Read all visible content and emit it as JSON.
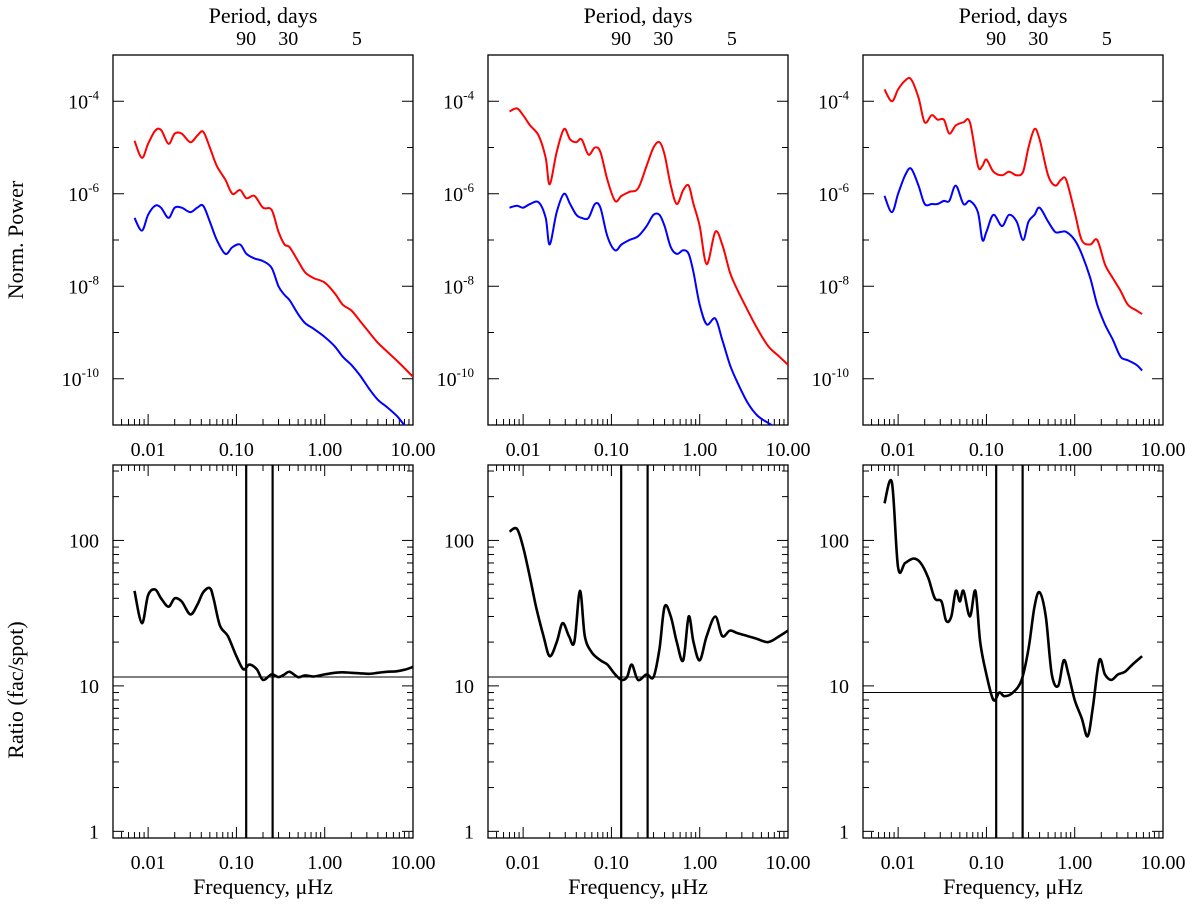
{
  "figure": {
    "top_axis_title": "Period, days",
    "top_axis_ticks": [
      {
        "label": "90",
        "period_days": 90
      },
      {
        "label": "30",
        "period_days": 30
      },
      {
        "label": "5",
        "period_days": 5
      }
    ],
    "x_label": "Frequency, μHz",
    "x_ticks": [
      {
        "label": "0.01",
        "value": 0.01
      },
      {
        "label": "0.10",
        "value": 0.1
      },
      {
        "label": "1.00",
        "value": 1
      },
      {
        "label": "10.00",
        "value": 10
      }
    ],
    "top_row_ylabel": "Norm. Power",
    "bottom_row_ylabel": "Ratio (fac/spot)",
    "power_y_ticks": [
      {
        "base": "10",
        "exp": "-4",
        "value": 0.0001
      },
      {
        "base": "10",
        "exp": "-6",
        "value": 1e-06
      },
      {
        "base": "10",
        "exp": "-8",
        "value": 1e-08
      },
      {
        "base": "10",
        "exp": "-10",
        "value": 1e-10
      }
    ],
    "ratio_y_ticks": [
      {
        "label": "100",
        "value": 100
      },
      {
        "label": "10",
        "value": 10
      },
      {
        "label": "1",
        "value": 1
      }
    ],
    "colors": {
      "facular": "#ff0000",
      "spot": "#0000ff",
      "ratio": "#000000",
      "axes": "#000000"
    }
  },
  "chart_data": [
    {
      "type": "line",
      "panel": "power",
      "column": 1,
      "xscale": "log",
      "yscale": "log",
      "xlim": [
        0.004,
        10
      ],
      "ylim": [
        1e-11,
        0.001
      ],
      "ylabel": "Norm. Power",
      "title": "",
      "series": [
        {
          "name": "red",
          "color": "#ff0000",
          "x": [
            0.007,
            0.0085,
            0.01,
            0.012,
            0.014,
            0.017,
            0.02,
            0.024,
            0.03,
            0.036,
            0.042,
            0.05,
            0.06,
            0.075,
            0.09,
            0.11,
            0.13,
            0.16,
            0.2,
            0.25,
            0.3,
            0.35,
            0.4,
            0.5,
            0.6,
            0.75,
            1.0,
            1.3,
            1.6,
            2.0,
            2.5,
            3.2,
            4.0,
            5.0,
            6.5,
            8.0,
            10.0
          ],
          "y": [
            1.4e-05,
            6e-06,
            1.2e-05,
            2.3e-05,
            2.4e-05,
            1.2e-05,
            2e-05,
            2e-05,
            1.3e-05,
            1.8e-05,
            2.2e-05,
            1e-05,
            4e-06,
            2e-06,
            1e-06,
            1.2e-06,
            8e-07,
            9e-07,
            5e-07,
            4.5e-07,
            1.5e-07,
            8e-08,
            7e-08,
            3.5e-08,
            2e-08,
            1.5e-08,
            1.2e-08,
            7e-09,
            4e-09,
            3e-09,
            1.8e-09,
            1e-09,
            6e-10,
            4e-10,
            2.5e-10,
            1.7e-10,
            1.1e-10
          ]
        },
        {
          "name": "blue",
          "color": "#0000ff",
          "x": [
            0.007,
            0.0085,
            0.01,
            0.012,
            0.014,
            0.017,
            0.02,
            0.024,
            0.03,
            0.036,
            0.042,
            0.05,
            0.06,
            0.075,
            0.09,
            0.11,
            0.13,
            0.16,
            0.2,
            0.25,
            0.3,
            0.35,
            0.4,
            0.5,
            0.6,
            0.75,
            1.0,
            1.3,
            1.6,
            2.0,
            2.5,
            3.2,
            4.0,
            5.0,
            6.5,
            8.0,
            10.0
          ],
          "y": [
            3e-07,
            1.6e-07,
            3.5e-07,
            5.5e-07,
            5e-07,
            3e-07,
            5e-07,
            5e-07,
            4e-07,
            5e-07,
            5.5e-07,
            2.5e-07,
            1e-07,
            5e-08,
            7e-08,
            8e-08,
            5e-08,
            4e-08,
            3.5e-08,
            2.5e-08,
            1e-08,
            6.5e-09,
            5e-09,
            2.5e-09,
            1.6e-09,
            1.2e-09,
            8e-10,
            5e-10,
            3e-10,
            2e-10,
            1.2e-10,
            6e-11,
            3.5e-11,
            2.5e-11,
            1.6e-11,
            1e-11,
            7e-12
          ]
        }
      ]
    },
    {
      "type": "line",
      "panel": "power",
      "column": 2,
      "xscale": "log",
      "yscale": "log",
      "xlim": [
        0.004,
        10
      ],
      "ylim": [
        1e-11,
        0.001
      ],
      "ylabel": "",
      "title": "",
      "series": [
        {
          "name": "red",
          "color": "#ff0000",
          "x": [
            0.007,
            0.0085,
            0.01,
            0.012,
            0.015,
            0.018,
            0.02,
            0.024,
            0.029,
            0.034,
            0.04,
            0.046,
            0.055,
            0.065,
            0.075,
            0.09,
            0.11,
            0.13,
            0.16,
            0.2,
            0.25,
            0.3,
            0.35,
            0.4,
            0.47,
            0.55,
            0.65,
            0.75,
            0.85,
            1.0,
            1.2,
            1.5,
            1.8,
            2.2,
            2.7,
            3.5,
            4.5,
            6.0,
            8.0,
            10.0
          ],
          "y": [
            6e-05,
            7e-05,
            5e-05,
            3e-05,
            1.8e-05,
            6e-06,
            1.6e-06,
            8e-06,
            2.5e-05,
            1.5e-05,
            1.3e-05,
            1.5e-05,
            7e-06,
            1e-05,
            8e-06,
            2e-06,
            7e-07,
            9e-07,
            1.1e-06,
            1.3e-06,
            4e-06,
            1e-05,
            1.3e-05,
            7e-06,
            1.5e-06,
            6e-07,
            1.2e-06,
            1.5e-06,
            6e-07,
            2e-07,
            3e-08,
            1.5e-07,
            8e-08,
            2e-08,
            8e-09,
            3e-09,
            1.2e-09,
            5e-10,
            3e-10,
            2e-10
          ]
        },
        {
          "name": "blue",
          "color": "#0000ff",
          "x": [
            0.007,
            0.0085,
            0.01,
            0.012,
            0.015,
            0.018,
            0.02,
            0.024,
            0.029,
            0.034,
            0.04,
            0.046,
            0.055,
            0.065,
            0.075,
            0.09,
            0.11,
            0.13,
            0.16,
            0.2,
            0.25,
            0.3,
            0.35,
            0.4,
            0.47,
            0.55,
            0.65,
            0.75,
            0.85,
            1.0,
            1.2,
            1.5,
            1.8,
            2.2,
            2.7,
            3.5,
            4.5,
            6.0,
            8.0,
            10.0
          ],
          "y": [
            5e-07,
            5.5e-07,
            5e-07,
            6e-07,
            6.5e-07,
            3e-07,
            8e-08,
            4e-07,
            1e-06,
            6e-07,
            3.5e-07,
            3e-07,
            3e-07,
            6e-07,
            5e-07,
            1.2e-07,
            6e-08,
            8e-08,
            1e-07,
            1.2e-07,
            2e-07,
            3.5e-07,
            3.5e-07,
            2e-07,
            7e-08,
            5e-08,
            6e-08,
            5e-08,
            2e-08,
            4e-09,
            1.5e-09,
            2e-09,
            7e-10,
            2e-10,
            8e-11,
            3e-11,
            1.6e-11,
            1.1e-11,
            8e-12,
            6e-12
          ]
        }
      ]
    },
    {
      "type": "line",
      "panel": "power",
      "column": 3,
      "xscale": "log",
      "yscale": "log",
      "xlim": [
        0.004,
        10
      ],
      "ylim": [
        1e-11,
        0.001
      ],
      "ylabel": "",
      "title": "",
      "series": [
        {
          "name": "red",
          "color": "#ff0000",
          "x": [
            0.007,
            0.0085,
            0.01,
            0.012,
            0.014,
            0.017,
            0.02,
            0.024,
            0.028,
            0.033,
            0.038,
            0.045,
            0.055,
            0.065,
            0.08,
            0.09,
            0.1,
            0.12,
            0.15,
            0.18,
            0.22,
            0.26,
            0.3,
            0.35,
            0.4,
            0.5,
            0.6,
            0.7,
            0.8,
            1.0,
            1.2,
            1.5,
            1.8,
            2.2,
            2.7,
            3.3,
            4.0,
            5.0,
            5.8
          ],
          "y": [
            0.00018,
            0.0001,
            0.00018,
            0.00028,
            0.0003,
            0.00012,
            3.5e-05,
            5e-05,
            4e-05,
            4e-05,
            2e-05,
            3e-05,
            3.5e-05,
            3.5e-05,
            4e-06,
            4e-06,
            5.5e-06,
            3e-06,
            2.5e-06,
            3e-06,
            2.5e-06,
            3e-06,
            1e-05,
            2.5e-05,
            1.5e-05,
            2.5e-06,
            1.5e-06,
            2e-06,
            2e-06,
            4e-07,
            1e-07,
            8e-08,
            1e-07,
            3e-08,
            1.5e-08,
            8e-09,
            4e-09,
            3e-09,
            2.5e-09
          ]
        },
        {
          "name": "blue",
          "color": "#0000ff",
          "x": [
            0.007,
            0.0085,
            0.01,
            0.012,
            0.014,
            0.017,
            0.02,
            0.024,
            0.028,
            0.033,
            0.038,
            0.045,
            0.055,
            0.065,
            0.08,
            0.09,
            0.1,
            0.12,
            0.15,
            0.18,
            0.22,
            0.26,
            0.3,
            0.35,
            0.4,
            0.5,
            0.6,
            0.7,
            0.8,
            1.0,
            1.2,
            1.5,
            1.8,
            2.2,
            2.7,
            3.3,
            4.0,
            5.0,
            5.8
          ],
          "y": [
            9e-07,
            4e-07,
            1e-06,
            2.5e-06,
            3.5e-06,
            1.5e-06,
            6e-07,
            6e-07,
            6e-07,
            7e-07,
            7e-07,
            1.5e-06,
            6e-07,
            7e-07,
            4e-07,
            1e-07,
            1.5e-07,
            3.5e-07,
            2e-07,
            3.5e-07,
            2.5e-07,
            1e-07,
            2.5e-07,
            3.5e-07,
            5e-07,
            2.5e-07,
            1.5e-07,
            1.5e-07,
            1.5e-07,
            1e-07,
            5e-08,
            1.5e-08,
            4e-09,
            1.5e-09,
            7e-10,
            3e-10,
            2.5e-10,
            2e-10,
            1.5e-10
          ]
        }
      ]
    },
    {
      "type": "line",
      "panel": "ratio",
      "column": 1,
      "xscale": "log",
      "yscale": "log",
      "xlim": [
        0.004,
        10
      ],
      "ylim": [
        0.9,
        330
      ],
      "ylabel": "Ratio (fac/spot)",
      "xlabel": "Frequency, μHz",
      "hline": 11.5,
      "vlines": [
        0.129,
        0.257
      ],
      "series": [
        {
          "name": "ratio",
          "color": "#000000",
          "x": [
            0.007,
            0.0085,
            0.01,
            0.012,
            0.014,
            0.017,
            0.02,
            0.024,
            0.03,
            0.036,
            0.042,
            0.05,
            0.055,
            0.065,
            0.08,
            0.1,
            0.12,
            0.14,
            0.17,
            0.2,
            0.25,
            0.3,
            0.35,
            0.4,
            0.5,
            0.6,
            0.75,
            1.0,
            1.3,
            1.6,
            2.0,
            2.5,
            3.2,
            4.0,
            5.0,
            6.5,
            8.0,
            10.0
          ],
          "y": [
            45,
            27,
            42,
            46,
            40,
            35,
            40,
            38,
            31,
            36,
            44,
            47,
            40,
            26,
            22,
            16,
            13,
            14,
            13,
            11,
            12,
            11.5,
            12,
            12.5,
            11.5,
            11.8,
            11.6,
            12.0,
            12.3,
            12.4,
            12.3,
            12.2,
            12.1,
            12.3,
            12.5,
            12.6,
            12.9,
            13.5
          ]
        }
      ]
    },
    {
      "type": "line",
      "panel": "ratio",
      "column": 2,
      "xscale": "log",
      "yscale": "log",
      "xlim": [
        0.004,
        10
      ],
      "ylim": [
        0.9,
        330
      ],
      "ylabel": "",
      "xlabel": "Frequency, μHz",
      "hline": 11.5,
      "vlines": [
        0.129,
        0.257
      ],
      "series": [
        {
          "name": "ratio",
          "color": "#000000",
          "x": [
            0.007,
            0.0085,
            0.01,
            0.012,
            0.014,
            0.017,
            0.02,
            0.024,
            0.028,
            0.033,
            0.038,
            0.044,
            0.05,
            0.06,
            0.075,
            0.09,
            0.11,
            0.13,
            0.15,
            0.17,
            0.2,
            0.25,
            0.3,
            0.35,
            0.4,
            0.47,
            0.55,
            0.65,
            0.75,
            0.85,
            1.0,
            1.2,
            1.5,
            1.8,
            2.2,
            2.7,
            3.5,
            4.5,
            6.0,
            8.0,
            10.0
          ],
          "y": [
            115,
            120,
            90,
            55,
            35,
            22,
            16,
            20,
            27,
            22,
            20,
            45,
            22,
            17,
            15,
            14,
            12,
            11,
            11.5,
            14,
            11,
            12,
            11.5,
            18,
            35,
            30,
            20,
            15,
            30,
            20,
            15,
            22,
            30,
            22,
            24,
            23,
            22,
            21,
            20,
            22,
            24
          ]
        }
      ]
    },
    {
      "type": "line",
      "panel": "ratio",
      "column": 3,
      "xscale": "log",
      "yscale": "log",
      "xlim": [
        0.004,
        10
      ],
      "ylim": [
        0.9,
        330
      ],
      "ylabel": "",
      "xlabel": "Frequency, μHz",
      "hline": 9,
      "vlines": [
        0.129,
        0.257
      ],
      "series": [
        {
          "name": "ratio",
          "color": "#000000",
          "x": [
            0.007,
            0.0085,
            0.01,
            0.012,
            0.015,
            0.018,
            0.022,
            0.026,
            0.031,
            0.035,
            0.04,
            0.045,
            0.05,
            0.055,
            0.065,
            0.075,
            0.085,
            0.1,
            0.12,
            0.14,
            0.16,
            0.2,
            0.25,
            0.3,
            0.35,
            0.4,
            0.47,
            0.55,
            0.65,
            0.75,
            0.85,
            1.0,
            1.2,
            1.4,
            1.6,
            1.9,
            2.2,
            2.6,
            3.1,
            3.7,
            4.5,
            5.8
          ],
          "y": [
            180,
            250,
            65,
            70,
            75,
            70,
            55,
            40,
            38,
            28,
            30,
            45,
            38,
            45,
            30,
            45,
            20,
            12,
            8,
            9,
            8.5,
            9,
            11,
            18,
            35,
            44,
            30,
            12,
            10,
            15,
            12,
            8,
            6,
            4.5,
            7,
            15,
            12,
            11,
            12,
            12.5,
            14,
            16
          ]
        }
      ]
    }
  ]
}
